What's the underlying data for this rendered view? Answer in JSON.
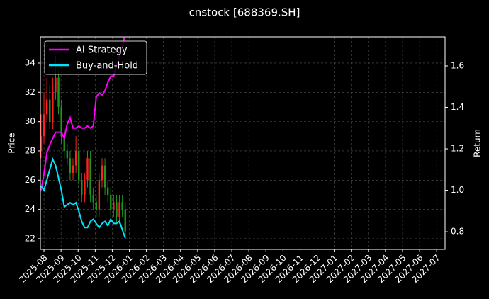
{
  "chart_data": {
    "type": "candlestick",
    "title": "cnstock [688369.SH]",
    "ylabel": "Price",
    "y2label": "Return",
    "x": [
      -0.17,
      0,
      0.17,
      0.34,
      0.51,
      0.68,
      0.85,
      1.02,
      1.19,
      1.36,
      1.53,
      1.7,
      1.87,
      2.04,
      2.21,
      2.38,
      2.55,
      2.72,
      2.89,
      3.06,
      3.23,
      3.4,
      3.57,
      3.74,
      3.91,
      4.08,
      4.25,
      4.42,
      4.59,
      4.76
    ],
    "open": [
      28,
      29,
      30.5,
      31.5,
      30,
      32,
      33,
      31,
      29,
      28,
      27.5,
      26.5,
      27,
      28,
      26,
      25,
      26,
      27.5,
      25,
      24.5,
      24,
      26,
      27,
      25.5,
      25,
      24,
      24.5,
      23.5,
      24.5,
      24
    ],
    "high": [
      30.5,
      32,
      33,
      32.5,
      33,
      34.5,
      33.5,
      31.5,
      29.5,
      28.5,
      28,
      27.5,
      29,
      28.5,
      26.5,
      26.5,
      28,
      28,
      25.5,
      25,
      26.5,
      27.5,
      27.5,
      26,
      25.5,
      25,
      25,
      25,
      25,
      24.5
    ],
    "low": [
      27.5,
      28.5,
      30,
      29.5,
      29.5,
      31.5,
      30.5,
      28.5,
      27.5,
      27,
      26,
      26,
      26.5,
      25.5,
      24.5,
      24.5,
      25.5,
      24.5,
      24,
      23.5,
      23.5,
      25.5,
      25,
      24.5,
      23.5,
      23.5,
      23,
      23,
      23.5,
      22
    ],
    "close": [
      29,
      30.5,
      31.5,
      30,
      32,
      33,
      31,
      29,
      28,
      27.5,
      26.5,
      27,
      28,
      26,
      25,
      26,
      27.5,
      25,
      24.5,
      24,
      26,
      27,
      25.5,
      25,
      24,
      24.5,
      23.5,
      24.5,
      24,
      22.5
    ],
    "up_color": "#ff2020",
    "down_color": "#1a9a1a",
    "series": [
      {
        "name": "AI Strategy",
        "color": "#ff00ff",
        "axis": "y2",
        "values": [
          1.0,
          1.08,
          1.18,
          1.22,
          1.25,
          1.28,
          1.28,
          1.28,
          1.25,
          1.32,
          1.35,
          1.3,
          1.3,
          1.31,
          1.3,
          1.3,
          1.31,
          1.3,
          1.31,
          1.45,
          1.47,
          1.46,
          1.48,
          1.52,
          1.55,
          1.55,
          1.6,
          1.65,
          1.7,
          1.75
        ]
      },
      {
        "name": "Buy-and-Hold",
        "color": "#00e5ff",
        "axis": "y2",
        "values": [
          1.02,
          1.0,
          1.05,
          1.1,
          1.15,
          1.12,
          1.06,
          1.0,
          0.92,
          0.93,
          0.94,
          0.93,
          0.94,
          0.9,
          0.85,
          0.82,
          0.82,
          0.85,
          0.86,
          0.84,
          0.82,
          0.84,
          0.85,
          0.83,
          0.86,
          0.84,
          0.84,
          0.85,
          0.81,
          0.77
        ]
      }
    ],
    "xlim": [
      -0.21,
      23.49
    ],
    "xticks": [
      {
        "value": 0,
        "label": "2025-08"
      },
      {
        "value": 1,
        "label": "2025-09"
      },
      {
        "value": 2,
        "label": "2025-10"
      },
      {
        "value": 3,
        "label": "2025-11"
      },
      {
        "value": 4,
        "label": "2025-12"
      },
      {
        "value": 5,
        "label": "2026-01"
      },
      {
        "value": 6,
        "label": "2026-02"
      },
      {
        "value": 7,
        "label": "2026-03"
      },
      {
        "value": 8,
        "label": "2026-04"
      },
      {
        "value": 9,
        "label": "2026-05"
      },
      {
        "value": 10,
        "label": "2026-06"
      },
      {
        "value": 11,
        "label": "2026-07"
      },
      {
        "value": 12,
        "label": "2026-08"
      },
      {
        "value": 13,
        "label": "2026-09"
      },
      {
        "value": 14,
        "label": "2026-10"
      },
      {
        "value": 15,
        "label": "2026-11"
      },
      {
        "value": 16,
        "label": "2026-12"
      },
      {
        "value": 17,
        "label": "2027-01"
      },
      {
        "value": 18,
        "label": "2027-02"
      },
      {
        "value": 19,
        "label": "2027-03"
      },
      {
        "value": 20,
        "label": "2027-04"
      },
      {
        "value": 21,
        "label": "2027-05"
      },
      {
        "value": 22,
        "label": "2027-06"
      },
      {
        "value": 23,
        "label": "2027-07"
      }
    ],
    "ylim": [
      21.27,
      35.79
    ],
    "yticks": [
      22,
      24,
      26,
      28,
      30,
      32,
      34
    ],
    "y2lim": [
      0.715,
      1.74
    ],
    "y2ticks": [
      0.8,
      {
        "value": 1.0,
        "label": "1.0"
      },
      1.2,
      1.4,
      1.6
    ],
    "grid": true,
    "legend": "upper left"
  }
}
